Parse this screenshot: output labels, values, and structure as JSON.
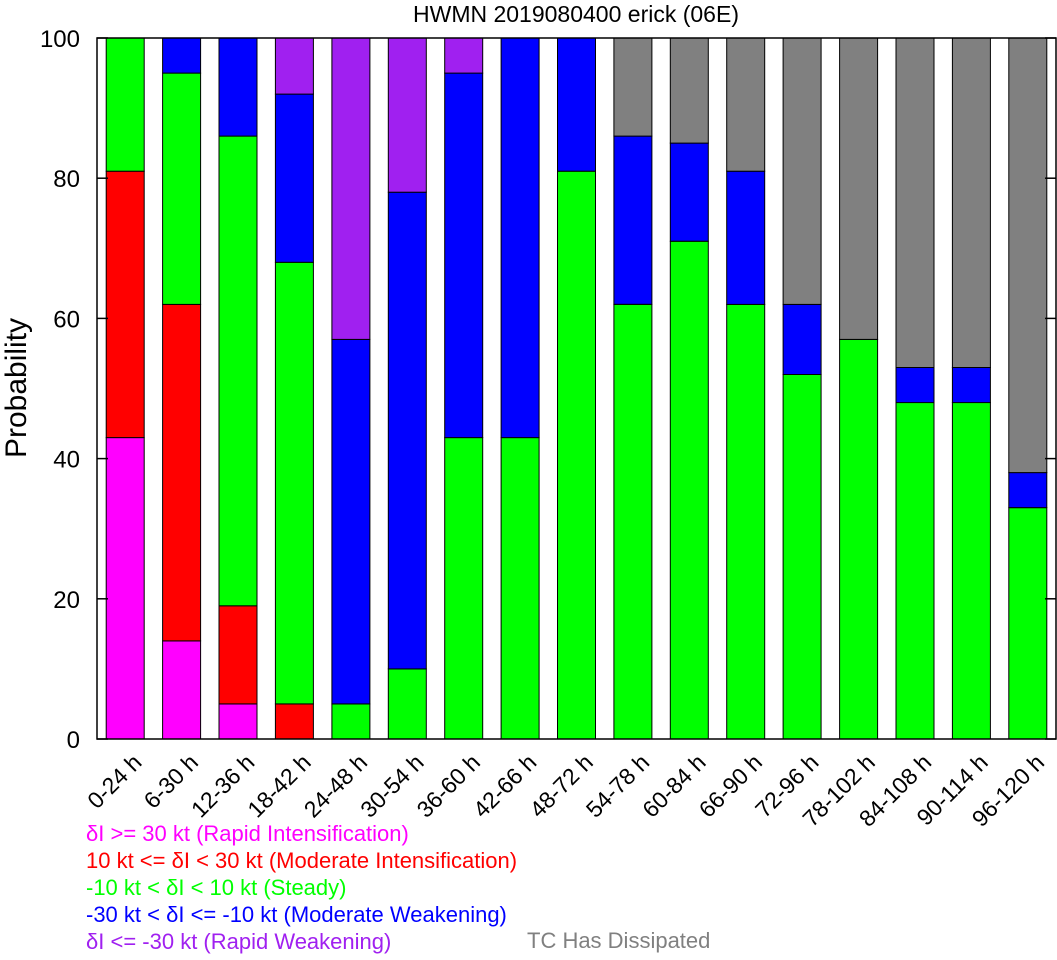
{
  "chart_data": {
    "type": "bar",
    "stacked": true,
    "title": "HWMN 2019080400 erick (06E)",
    "xlabel": "",
    "ylabel": "Probability",
    "ylim": [
      0,
      100
    ],
    "yticks": [
      0,
      20,
      40,
      60,
      80,
      100
    ],
    "grid": false,
    "categories": [
      "0-24 h",
      "6-30 h",
      "12-36 h",
      "18-42 h",
      "24-48 h",
      "30-54 h",
      "36-60 h",
      "42-66 h",
      "48-72 h",
      "54-78 h",
      "60-84 h",
      "66-90 h",
      "72-96 h",
      "78-102 h",
      "84-108 h",
      "90-114 h",
      "96-120 h"
    ],
    "series": [
      {
        "name": "δI >= 30 kt (Rapid Intensification)",
        "color": "#ff00ff",
        "values": [
          43,
          14,
          5,
          0,
          0,
          0,
          0,
          0,
          0,
          0,
          0,
          0,
          0,
          0,
          0,
          0,
          0
        ]
      },
      {
        "name": "10 kt <= δI < 30 kt (Moderate Intensification)",
        "color": "#ff0000",
        "values": [
          38,
          48,
          14,
          5,
          0,
          0,
          0,
          0,
          0,
          0,
          0,
          0,
          0,
          0,
          0,
          0,
          0
        ]
      },
      {
        "name": "-10 kt < δI < 10 kt (Steady)",
        "color": "#00ff00",
        "values": [
          19,
          33,
          67,
          63,
          5,
          10,
          43,
          43,
          81,
          62,
          71,
          62,
          52,
          57,
          48,
          48,
          33
        ]
      },
      {
        "name": "-30 kt < δI <= -10 kt (Moderate Weakening)",
        "color": "#0000ff",
        "values": [
          0,
          5,
          14,
          24,
          52,
          68,
          52,
          57,
          19,
          24,
          14,
          19,
          10,
          0,
          5,
          5,
          5
        ]
      },
      {
        "name": "δI <= -30 kt (Rapid Weakening)",
        "color": "#a020f0",
        "values": [
          0,
          0,
          0,
          8,
          43,
          22,
          5,
          0,
          0,
          0,
          0,
          0,
          0,
          0,
          0,
          0,
          0
        ]
      },
      {
        "name": "TC Has Dissipated",
        "color": "#808080",
        "values": [
          0,
          0,
          0,
          0,
          0,
          0,
          0,
          0,
          0,
          14,
          15,
          19,
          38,
          43,
          47,
          47,
          62
        ]
      }
    ]
  }
}
